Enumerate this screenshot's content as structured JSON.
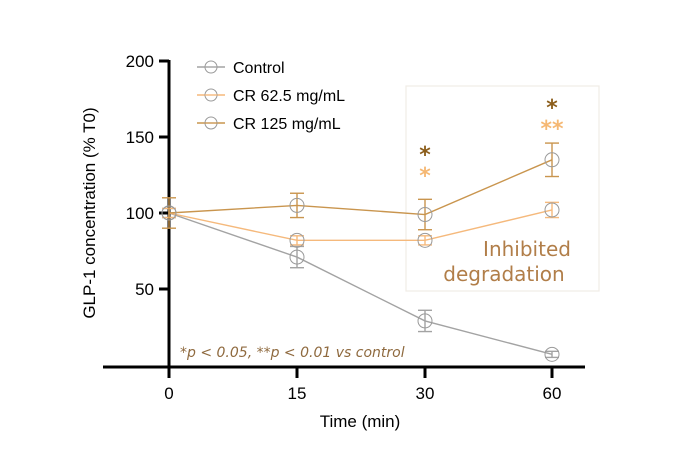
{
  "chart_data": {
    "type": "line",
    "title": "",
    "xlabel": "Time (min)",
    "ylabel": "GLP-1 concentration (% T0)",
    "categories": [
      "0",
      "15",
      "30",
      "60"
    ],
    "x_is_categorical": true,
    "ylim": [
      0,
      200
    ],
    "yticks": [
      50,
      100,
      150,
      200
    ],
    "grid": false,
    "legend_position": "top-left",
    "series": [
      {
        "name": "Control",
        "color": "#a3a3a3",
        "marker": "open-circle",
        "values": [
          100,
          71,
          29,
          7
        ],
        "errors": [
          3,
          7,
          7,
          2
        ]
      },
      {
        "name": "CR 62.5 mg/mL",
        "color": "#f5b97c",
        "marker": "open-circle",
        "values": [
          100,
          82,
          82,
          102
        ],
        "errors": [
          3,
          3,
          3,
          5
        ]
      },
      {
        "name": "CR 125 mg/mL",
        "color": "#c9954e",
        "marker": "open-circle",
        "values": [
          100,
          105,
          99,
          135
        ],
        "errors": [
          10,
          8,
          10,
          11
        ]
      }
    ],
    "significance": [
      {
        "category": "30",
        "series": "CR 125 mg/mL",
        "label": "*",
        "color": "#8c5e1c"
      },
      {
        "category": "30",
        "series": "CR 62.5 mg/mL",
        "label": "*",
        "color": "#f5b874"
      },
      {
        "category": "60",
        "series": "CR 125 mg/mL",
        "label": "*",
        "color": "#8c5e1c"
      },
      {
        "category": "60",
        "series": "CR 62.5 mg/mL",
        "label": "**",
        "color": "#f5b874"
      }
    ],
    "annotations": {
      "box_label_line1": "Inhibited",
      "box_label_line2": "degradation",
      "box_text_color": "#b17e49",
      "box_covers_categories": [
        "30",
        "60"
      ],
      "footnote": "*p < 0.05, **p < 0.01 vs control",
      "footnote_color": "#8f6a3f"
    }
  }
}
